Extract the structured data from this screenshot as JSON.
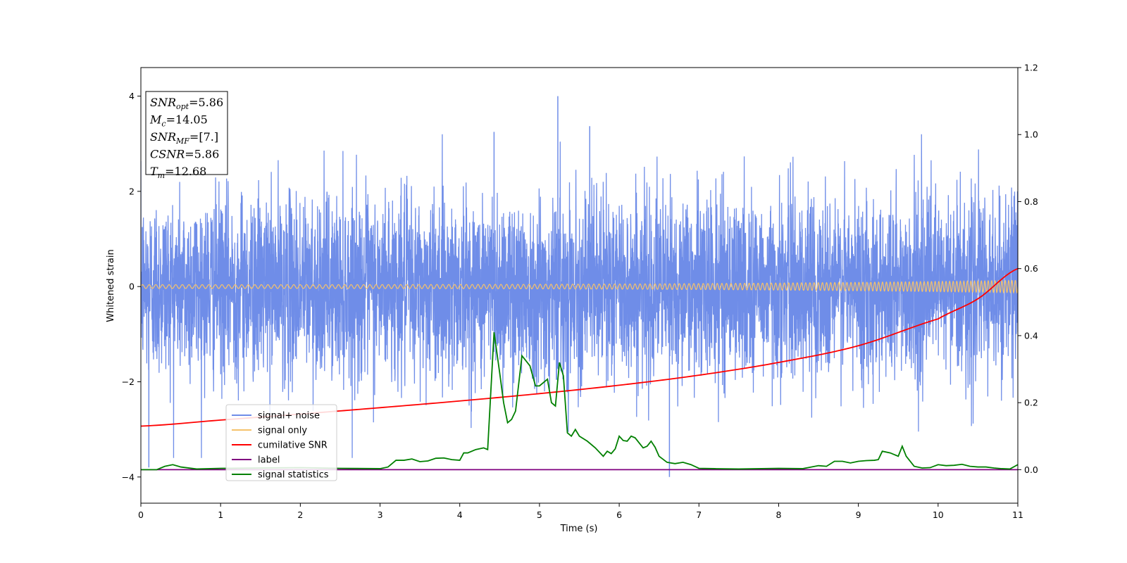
{
  "chart_data": {
    "type": "line",
    "xlabel": "Time (s)",
    "ylabel": "Whitened strain",
    "title": "",
    "xlim": [
      0,
      11
    ],
    "ylim": [
      -4.55,
      4.6
    ],
    "y2lim": [
      -0.1,
      1.2
    ],
    "xticks": [
      0,
      1,
      2,
      3,
      4,
      5,
      6,
      7,
      8,
      9,
      10,
      11
    ],
    "yticks": [
      -4,
      -2,
      0,
      2,
      4
    ],
    "y2ticks": [
      0.0,
      0.2,
      0.4,
      0.6,
      0.8,
      1.0,
      1.2
    ],
    "grid": false,
    "legend_position": "lower-left",
    "annotations": [
      {
        "sym": "SNR",
        "sub": "opt",
        "value": "=5.86"
      },
      {
        "sym": "M",
        "sub": "c",
        "value": "=14.05"
      },
      {
        "sym": "SNR",
        "sub": "MF",
        "value": "=[7.]"
      },
      {
        "sym": "CSNR",
        "sub": "",
        "value": "=5.86"
      },
      {
        "sym": "T",
        "sub": "m",
        "value": "=12.68"
      }
    ],
    "series": [
      {
        "name": "signal+ noise",
        "color": "#6f8de8",
        "axis": "left",
        "description_values": {
          "std": 0.95,
          "min": -4.0,
          "max": 4.0,
          "peaks": [
            [
              5.23,
              4.0
            ],
            [
              6.63,
              -4.0
            ],
            [
              4.43,
              3.25
            ],
            [
              5.63,
              3.37
            ],
            [
              0.1,
              -3.8
            ]
          ]
        }
      },
      {
        "name": "signal only",
        "color": "#f5c26b",
        "axis": "left",
        "chirp": {
          "amplitude_start": 0.04,
          "amplitude_end": 0.13,
          "freq_start": 12,
          "freq_end": 24
        }
      },
      {
        "name": "cumilative SNR",
        "color": "#ff0000",
        "axis": "right",
        "x": [
          0,
          1,
          2,
          3,
          4,
          5,
          6,
          7,
          8,
          9,
          10,
          10.5,
          11
        ],
        "y": [
          0.13,
          0.148,
          0.166,
          0.185,
          0.205,
          0.227,
          0.252,
          0.282,
          0.32,
          0.37,
          0.45,
          0.51,
          0.6
        ]
      },
      {
        "name": "label",
        "color": "#800080",
        "axis": "right",
        "x": [
          0,
          11
        ],
        "y": [
          0.0,
          0.0
        ]
      },
      {
        "name": "signal statistics",
        "color": "#008000",
        "axis": "right",
        "x": [
          0,
          0.2,
          0.3,
          0.4,
          0.5,
          0.7,
          1.0,
          1.5,
          2.0,
          2.5,
          3.0,
          3.1,
          3.2,
          3.3,
          3.4,
          3.5,
          3.6,
          3.7,
          3.8,
          3.9,
          4.0,
          4.05,
          4.1,
          4.2,
          4.3,
          4.35,
          4.43,
          4.5,
          4.55,
          4.6,
          4.65,
          4.7,
          4.78,
          4.88,
          4.95,
          5.0,
          5.05,
          5.1,
          5.15,
          5.2,
          5.25,
          5.3,
          5.35,
          5.4,
          5.45,
          5.5,
          5.6,
          5.7,
          5.8,
          5.85,
          5.9,
          5.95,
          6.0,
          6.05,
          6.1,
          6.15,
          6.2,
          6.25,
          6.3,
          6.35,
          6.4,
          6.45,
          6.5,
          6.6,
          6.7,
          6.8,
          6.9,
          7.0,
          7.2,
          7.5,
          8.0,
          8.3,
          8.5,
          8.6,
          8.7,
          8.8,
          8.9,
          9.0,
          9.1,
          9.2,
          9.25,
          9.3,
          9.4,
          9.5,
          9.55,
          9.6,
          9.7,
          9.8,
          9.9,
          10.0,
          10.1,
          10.2,
          10.3,
          10.4,
          10.5,
          10.6,
          10.7,
          10.8,
          10.9,
          11.0
        ],
        "y": [
          0.0,
          0.0,
          0.01,
          0.015,
          0.008,
          0.002,
          0.004,
          0.005,
          0.006,
          0.004,
          0.003,
          0.008,
          0.028,
          0.028,
          0.032,
          0.024,
          0.026,
          0.034,
          0.035,
          0.03,
          0.028,
          0.05,
          0.05,
          0.06,
          0.065,
          0.06,
          0.41,
          0.29,
          0.2,
          0.14,
          0.15,
          0.175,
          0.34,
          0.31,
          0.25,
          0.25,
          0.26,
          0.27,
          0.2,
          0.19,
          0.32,
          0.28,
          0.11,
          0.1,
          0.12,
          0.1,
          0.085,
          0.065,
          0.04,
          0.055,
          0.048,
          0.062,
          0.1,
          0.087,
          0.085,
          0.1,
          0.095,
          0.08,
          0.065,
          0.07,
          0.085,
          0.067,
          0.04,
          0.022,
          0.018,
          0.022,
          0.015,
          0.004,
          0.003,
          0.002,
          0.004,
          0.003,
          0.012,
          0.01,
          0.025,
          0.025,
          0.02,
          0.025,
          0.027,
          0.028,
          0.03,
          0.055,
          0.05,
          0.04,
          0.07,
          0.04,
          0.01,
          0.005,
          0.006,
          0.015,
          0.012,
          0.013,
          0.016,
          0.01,
          0.008,
          0.008,
          0.005,
          0.003,
          0.002,
          0.015
        ]
      }
    ]
  }
}
